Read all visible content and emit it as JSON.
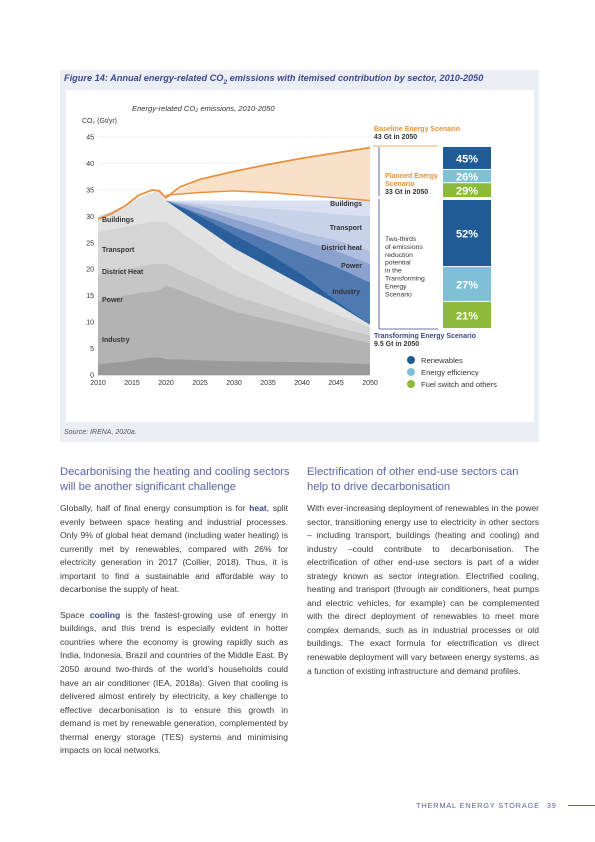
{
  "figure": {
    "title_prefix": "Figure 14: Annual energy-related CO",
    "title_sub": "2",
    "title_suffix": " emissions with itemised contribution by sector, 2010-2050",
    "source": "Source: IRENA, 2020a."
  },
  "chart_data": {
    "type": "area",
    "title": "Energy-related CO₂ emissions, 2010-2050",
    "ylabel": "CO₂ (Gt/yr)",
    "ylim": [
      0,
      45
    ],
    "xlim": [
      2010,
      2050
    ],
    "x_ticks": [
      2010,
      2015,
      2020,
      2025,
      2030,
      2035,
      2040,
      2045,
      2050
    ],
    "y_ticks": [
      0,
      5,
      10,
      15,
      20,
      25,
      30,
      35,
      40,
      45
    ],
    "historical": {
      "x": [
        2010,
        2012,
        2014,
        2016,
        2018,
        2019
      ],
      "stack_tops": [
        {
          "name": "Industry",
          "values": [
            2.0,
            2.3,
            2.5,
            3.0,
            3.3,
            3.3
          ]
        },
        {
          "name": "Power",
          "values": [
            14.0,
            14.5,
            15.0,
            15.5,
            15.8,
            16.0
          ]
        },
        {
          "name": "District Heat",
          "values": [
            19.0,
            19.5,
            20.0,
            20.5,
            21.0,
            21.0
          ]
        },
        {
          "name": "Transport",
          "values": [
            27.0,
            27.5,
            28.0,
            28.5,
            29.0,
            29.0
          ]
        },
        {
          "name": "Buildings",
          "values": [
            30.0,
            31.0,
            32.0,
            33.5,
            34.5,
            35.0
          ]
        }
      ]
    },
    "transforming_stack": {
      "x": [
        2020,
        2025,
        2030,
        2035,
        2040,
        2045,
        2050
      ],
      "stack_tops": [
        {
          "name": "Industry",
          "values": [
            3.0,
            2.8,
            2.6,
            2.5,
            2.4,
            2.3,
            2.0
          ]
        },
        {
          "name": "Power",
          "values": [
            17.0,
            14.5,
            12.0,
            10.5,
            9.0,
            7.5,
            6.0
          ]
        },
        {
          "name": "District heat",
          "values": [
            21.0,
            18.0,
            15.0,
            13.0,
            11.0,
            9.0,
            7.5
          ]
        },
        {
          "name": "Transport",
          "values": [
            29.0,
            24.5,
            20.0,
            17.0,
            14.0,
            11.5,
            9.0
          ]
        },
        {
          "name": "Buildings",
          "values": [
            33.0,
            28.5,
            24.0,
            20.5,
            17.0,
            13.5,
            9.5
          ]
        }
      ]
    },
    "reductions": {
      "x": [
        2020,
        2025,
        2030,
        2035,
        2040,
        2045,
        2050
      ],
      "bands": [
        {
          "name": "Industry",
          "lower": [
            33.0,
            28.5,
            24.0,
            20.5,
            17.0,
            13.5,
            9.5
          ],
          "upper": [
            33.0,
            30.5,
            28.0,
            25.5,
            23.0,
            20.5,
            17.5
          ],
          "color": "#3d6aa8"
        },
        {
          "name": "Power",
          "lower": [
            33.0,
            30.5,
            28.0,
            25.5,
            23.0,
            20.5,
            17.5
          ],
          "upper": [
            33.0,
            31.5,
            29.5,
            27.5,
            25.5,
            23.5,
            21.0
          ],
          "color": "#7e98c9"
        },
        {
          "name": "District heat",
          "lower": [
            33.0,
            31.5,
            29.5,
            27.5,
            25.5,
            23.5,
            21.0
          ],
          "upper": [
            33.0,
            32.0,
            30.5,
            29.0,
            27.0,
            25.5,
            23.5
          ],
          "color": "#a7b8dc"
        },
        {
          "name": "Transport",
          "lower": [
            33.0,
            32.0,
            30.5,
            29.0,
            27.0,
            25.5,
            23.5
          ],
          "upper": [
            33.0,
            32.5,
            32.0,
            31.5,
            31.0,
            30.5,
            30.0
          ],
          "color": "#c2cde6"
        },
        {
          "name": "Buildings",
          "lower": [
            33.0,
            32.5,
            32.0,
            31.5,
            31.0,
            30.5,
            30.0
          ],
          "upper": [
            33.0,
            33.0,
            33.0,
            33.0,
            33.0,
            33.0,
            33.0
          ],
          "color": "#d6ddef"
        }
      ]
    },
    "diagonal_band": {
      "x": [
        2020,
        2025,
        2030,
        2035,
        2040,
        2045,
        2050
      ],
      "upper": [
        33.0,
        30.0,
        26.5,
        23.0,
        19.0,
        14.0,
        9.5
      ],
      "lower": [
        33.0,
        28.5,
        24.0,
        20.5,
        17.0,
        13.5,
        9.5
      ],
      "color": "#2a5f9c"
    },
    "baseline": {
      "name": "Baseline Energy Scenario",
      "x": [
        2010,
        2012,
        2014,
        2016,
        2018,
        2019,
        2020,
        2022,
        2025,
        2030,
        2035,
        2040,
        2045,
        2050
      ],
      "values": [
        29.5,
        30.5,
        32.0,
        34.0,
        35.0,
        34.8,
        33.5,
        35.5,
        37.0,
        38.5,
        39.8,
        41.0,
        42.0,
        43.0
      ],
      "color": "#e8913a"
    },
    "planned": {
      "name": "Planned Energy Scenario",
      "x": [
        2020,
        2025,
        2030,
        2035,
        2040,
        2045,
        2050
      ],
      "values": [
        34.0,
        34.5,
        34.8,
        34.5,
        34.0,
        33.5,
        33.0
      ],
      "color": "#e8913a"
    },
    "sector_labels_left": [
      "Buildings",
      "Transport",
      "District Heat",
      "Power",
      "Industry"
    ],
    "sector_labels_right": [
      "Buildings",
      "Transport",
      "District heat",
      "Power",
      "Industry"
    ],
    "scenario_labels": {
      "baseline_name": "Baseline Energy Scenario",
      "baseline_value": "43 Gt in 2050",
      "planned_line1": "Planned Energy",
      "planned_line2": "Scenario",
      "planned_value": "33 Gt in 2050",
      "transforming_name": "Transforming Energy Scenario",
      "transforming_value": "9.5 Gt in 2050",
      "twothirds": [
        "Two-thirds",
        "of emissions",
        "reduction",
        "potential",
        "in the",
        "Transforming",
        "Energy",
        "Scenario"
      ]
    },
    "bars": {
      "top": [
        {
          "label": "45%",
          "value": 45,
          "color": "#1f5b96"
        },
        {
          "label": "26%",
          "value": 26,
          "color": "#7fc0d6"
        },
        {
          "label": "29%",
          "value": 29,
          "color": "#8cbb3a"
        }
      ],
      "bottom": [
        {
          "label": "52%",
          "value": 52,
          "color": "#1f5b96"
        },
        {
          "label": "27%",
          "value": 27,
          "color": "#7fc0d6"
        },
        {
          "label": "21%",
          "value": 21,
          "color": "#8cbb3a"
        }
      ]
    },
    "legend": [
      {
        "name": "Renewables",
        "color": "#1f5b96"
      },
      {
        "name": "Energy efficiency",
        "color": "#7fc0d6"
      },
      {
        "name": "Fuel switch and others",
        "color": "#8cbb3a"
      }
    ],
    "colors": {
      "accent": "#3c4a8c",
      "orange": "#e8913a"
    }
  },
  "left_column": {
    "heading": "Decarbonising the heating and cooling sectors will be another significant challenge",
    "p1_a": "Globally, half of final energy consumption is for ",
    "p1_b": "heat",
    "p1_c": ", split evenly between space heating and industrial processes. Only 9% of global heat demand (including water heating) is currently met by renewables, compared with 26% for electricity generation in 2017 (Collier, 2018). Thus, it is important to find a sustainable and affordable way to decarbonise the supply of heat.",
    "p2_a": "Space ",
    "p2_b": "cooling",
    "p2_c": " is the fastest-growing use of energy in buildings, and this trend is especially evident in hotter countries where the economy is growing rapidly such as India, Indonesia, Brazil and countries of the Middle East. By 2050 around two-thirds of the world’s households could have an air conditioner (IEA, 2018a). Given that cooling is delivered almost entirely by electricity, a key challenge to effective decarbonisation is to ensure this growth in demand is met by renewable generation, complemented by thermal energy storage (TES) systems and minimising impacts on local networks."
  },
  "right_column": {
    "heading": "Electrification of other end-use sectors can help to drive decarbonisation",
    "p1": "With ever-increasing deployment of renewables in the power sector, transitioning energy use to electricity in other sectors – including transport, buildings (heating and cooling) and industry –could contribute to decarbonisation. The electrification of other end-use sectors is part of a wider strategy known as sector integration. Electrified cooling, heating and transport (through air conditioners, heat pumps and electric vehicles, for example) can be complemented with the direct deployment of renewables to meet more complex demands, such as in industrial processes or old buildings. The exact formula for electrification vs direct renewable deployment will vary between energy systems, as a function of existing infrastructure and demand profiles."
  },
  "footer": {
    "running_title": "THERMAL ENERGY STORAGE",
    "page_number": "39"
  }
}
